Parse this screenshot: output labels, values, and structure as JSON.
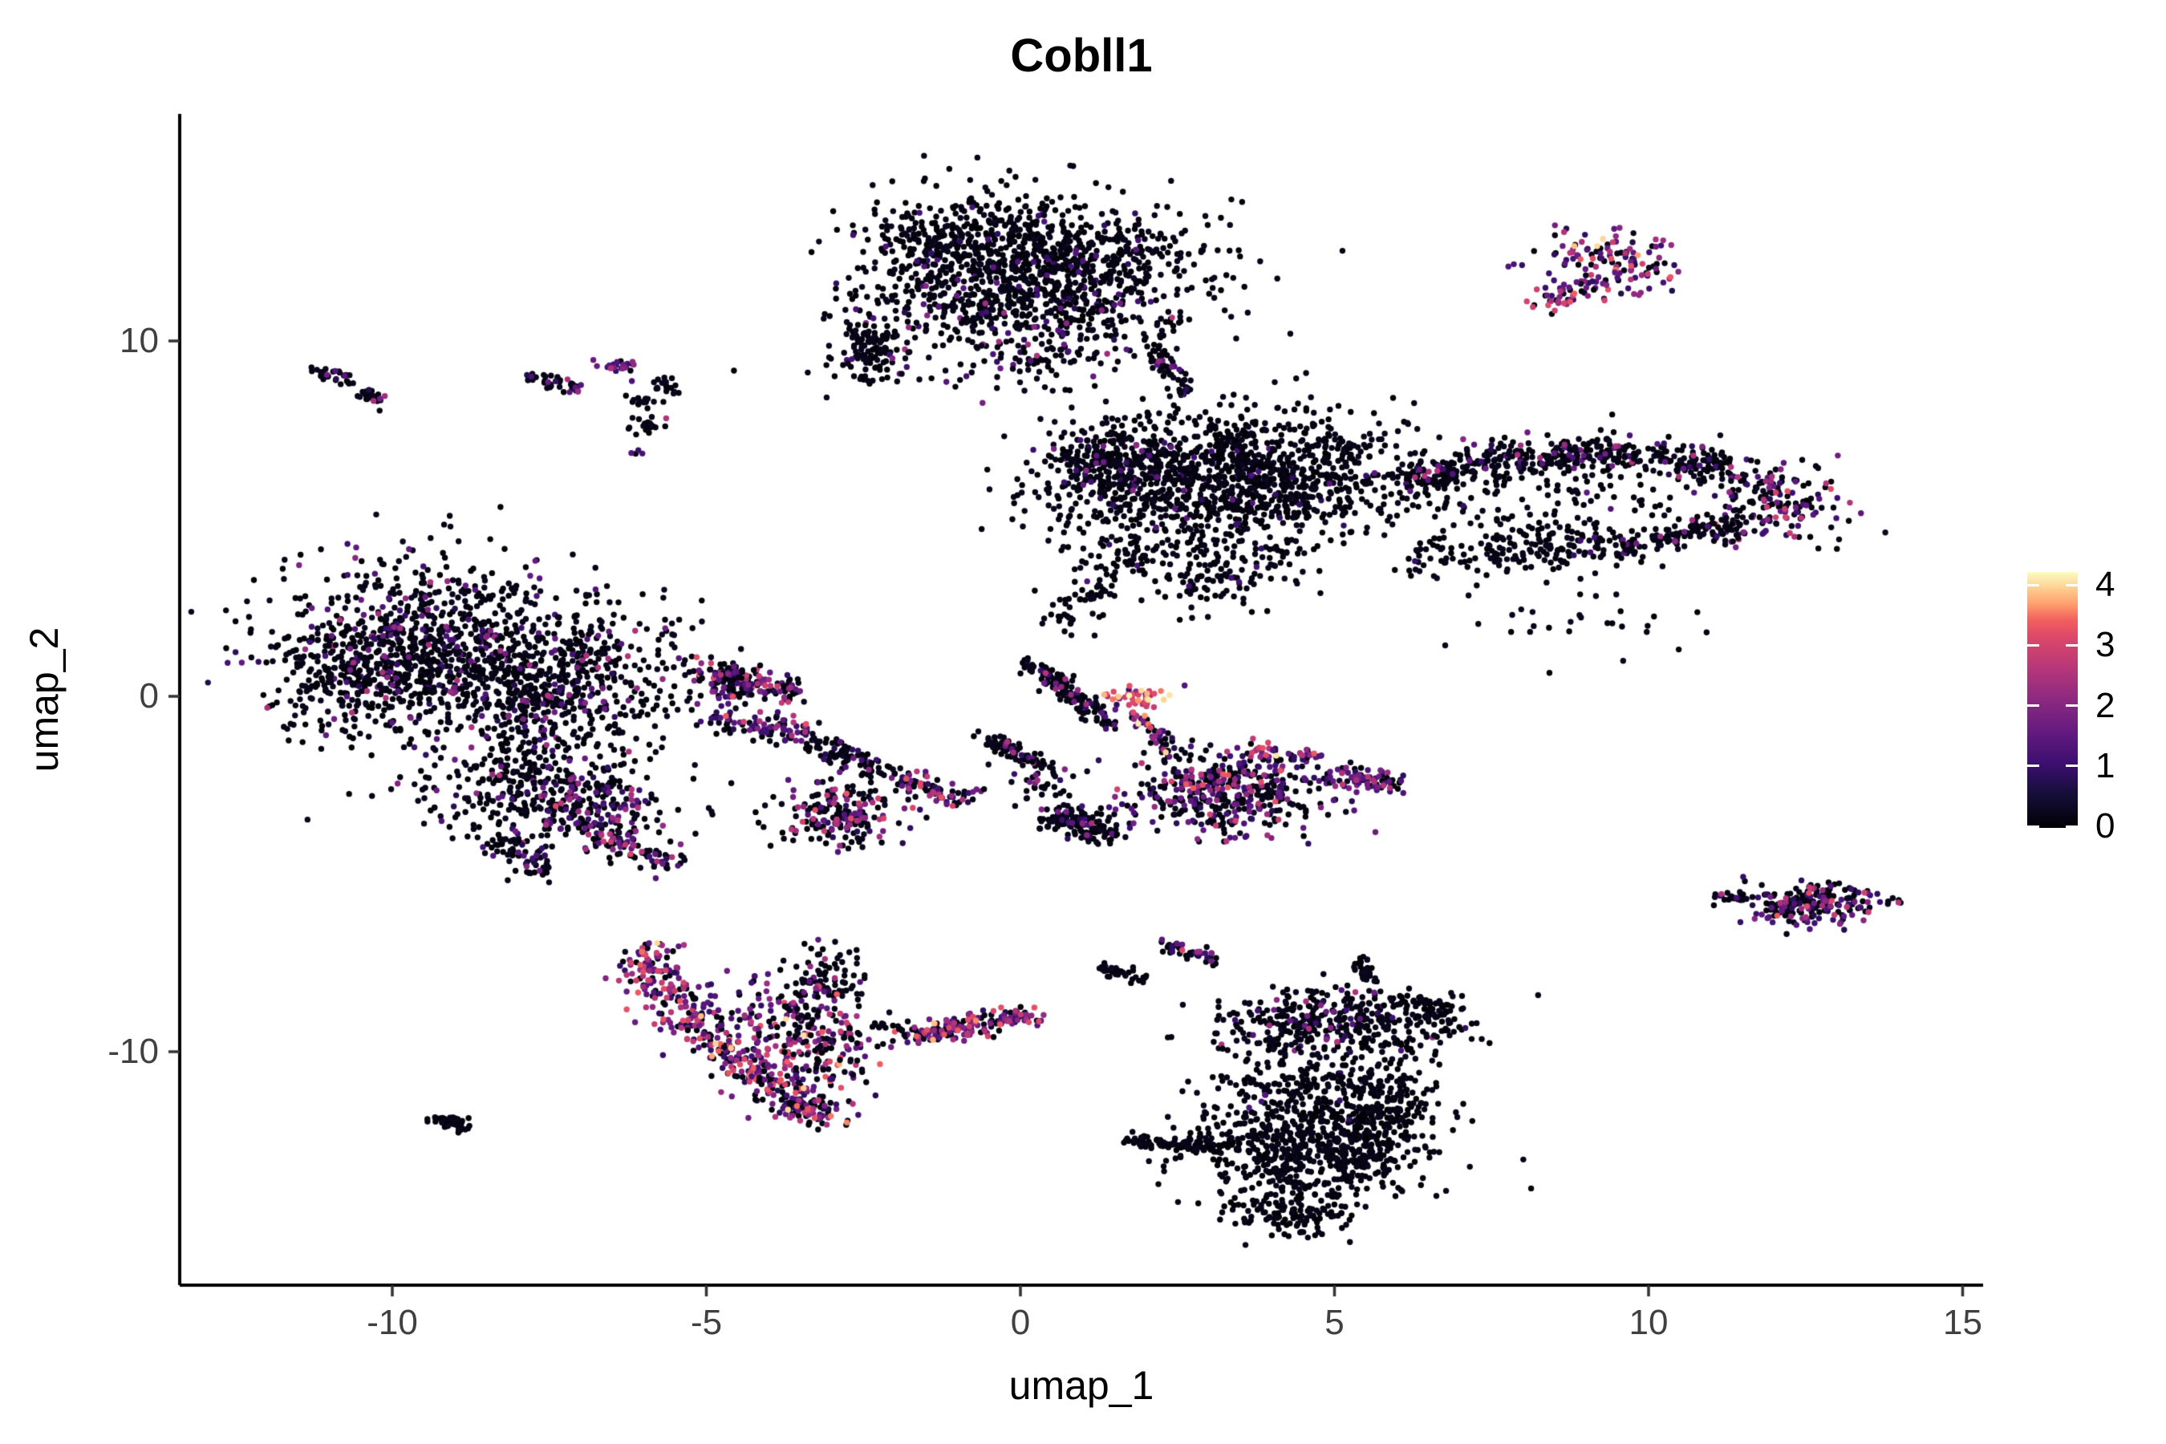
{
  "title": "Cobll1",
  "axes": {
    "x_label": "umap_1",
    "y_label": "umap_2",
    "x_ticks": [
      -10,
      -5,
      0,
      5,
      10,
      15
    ],
    "y_ticks": [
      -10,
      0,
      10
    ]
  },
  "legend": {
    "ticks": [
      0,
      1,
      2,
      3,
      4
    ],
    "vmin": 0,
    "vmax": 4.24
  },
  "palette": {
    "name": "magma",
    "stops": [
      [
        0.0,
        "#000004"
      ],
      [
        0.125,
        "#140e36"
      ],
      [
        0.25,
        "#3b0f70"
      ],
      [
        0.375,
        "#641a80"
      ],
      [
        0.5,
        "#8c2981"
      ],
      [
        0.625,
        "#b73779"
      ],
      [
        0.75,
        "#de4968"
      ],
      [
        0.8125,
        "#f1605d"
      ],
      [
        0.875,
        "#fe9f6d"
      ],
      [
        0.9375,
        "#fecf92"
      ],
      [
        1.0,
        "#fcfdbf"
      ]
    ]
  },
  "chart_data": {
    "type": "scatter",
    "title": "Cobll1",
    "xlabel": "umap_1",
    "ylabel": "umap_2",
    "xlim": [
      -13.4,
      15.3
    ],
    "ylim": [
      -16.5,
      16.4
    ],
    "grid": false,
    "legend_position": "right",
    "colorbar": {
      "label": "",
      "ticks": [
        0,
        1,
        2,
        3,
        4
      ],
      "vmin": 0,
      "vmax": 4.24,
      "palette": "magma"
    },
    "seed": 1337,
    "point_radius": 3.7,
    "color_profiles": {
      "pure_black": [
        [
          0,
          0.25,
          1.0
        ]
      ],
      "black": [
        [
          0,
          0.28,
          0.96
        ],
        [
          0.8,
          1.5,
          0.04
        ]
      ],
      "black_p": [
        [
          0,
          0.3,
          0.86
        ],
        [
          0.7,
          1.8,
          0.11
        ],
        [
          1.9,
          2.6,
          0.03
        ]
      ],
      "mixed_dark": [
        [
          0,
          0.3,
          0.58
        ],
        [
          0.7,
          1.8,
          0.28
        ],
        [
          1.9,
          2.7,
          0.1
        ],
        [
          2.8,
          3.4,
          0.04
        ]
      ],
      "purple": [
        [
          0,
          0.3,
          0.3
        ],
        [
          0.8,
          1.9,
          0.55
        ],
        [
          2.0,
          2.8,
          0.15
        ]
      ],
      "colorful": [
        [
          0,
          0.3,
          0.3
        ],
        [
          0.7,
          1.8,
          0.32
        ],
        [
          1.9,
          2.7,
          0.23
        ],
        [
          2.8,
          3.4,
          0.11
        ],
        [
          3.5,
          4.2,
          0.04
        ]
      ],
      "hot": [
        [
          0.8,
          1.6,
          0.15
        ],
        [
          1.9,
          2.7,
          0.3
        ],
        [
          2.8,
          3.4,
          0.32
        ],
        [
          3.5,
          4.2,
          0.23
        ]
      ]
    },
    "clusters": [
      {
        "shape": "gauss",
        "center": [
          -0.9,
          12.6
        ],
        "sd": [
          0.95,
          0.8
        ],
        "n": 480,
        "expr": "black"
      },
      {
        "shape": "gauss",
        "center": [
          0.9,
          12.25
        ],
        "sd": [
          1.1,
          0.85
        ],
        "n": 500,
        "expr": "black"
      },
      {
        "shape": "gauss",
        "center": [
          0.1,
          10.7
        ],
        "sd": [
          1.3,
          0.75
        ],
        "n": 380,
        "expr": "black_p"
      },
      {
        "shape": "gauss",
        "center": [
          -2.37,
          9.85
        ],
        "sd": [
          0.25,
          0.55
        ],
        "n": 110,
        "expr": "black"
      },
      {
        "shape": "strand",
        "from": [
          2.05,
          10.0
        ],
        "to": [
          2.75,
          8.3
        ],
        "w": 0.12,
        "n": 55,
        "expr": "black_p"
      },
      {
        "shape": "gauss",
        "center": [
          -0.3,
          9.6
        ],
        "sd": [
          1.3,
          0.5
        ],
        "n": 80,
        "expr": "black_p"
      },
      {
        "shape": "strand",
        "from": [
          2.9,
          8.0
        ],
        "to": [
          3.6,
          6.85
        ],
        "w": 0.15,
        "n": 28,
        "expr": "black"
      },
      {
        "shape": "strand",
        "from": [
          -11.25,
          9.15
        ],
        "to": [
          -10.65,
          8.9
        ],
        "w": 0.1,
        "n": 30,
        "expr": "black_p"
      },
      {
        "shape": "strand",
        "from": [
          -10.5,
          8.5
        ],
        "to": [
          -10.15,
          8.25
        ],
        "w": 0.1,
        "n": 22,
        "expr": "black_p"
      },
      {
        "shape": "strand",
        "from": [
          -7.85,
          9.0
        ],
        "to": [
          -7.0,
          8.65
        ],
        "w": 0.09,
        "n": 40,
        "expr": "black_p"
      },
      {
        "shape": "gauss",
        "center": [
          -6.35,
          9.3
        ],
        "sd": [
          0.18,
          0.14
        ],
        "n": 22,
        "expr": "purple"
      },
      {
        "shape": "gauss",
        "center": [
          -5.62,
          8.7
        ],
        "sd": [
          0.14,
          0.13
        ],
        "n": 18,
        "expr": "black"
      },
      {
        "shape": "gauss",
        "center": [
          -6.05,
          8.25
        ],
        "sd": [
          0.13,
          0.11
        ],
        "n": 15,
        "expr": "black_p"
      },
      {
        "shape": "gauss",
        "center": [
          -5.95,
          7.6
        ],
        "sd": [
          0.14,
          0.13
        ],
        "n": 20,
        "expr": "black_p"
      },
      {
        "shape": "gauss",
        "center": [
          -6.15,
          6.85
        ],
        "sd": [
          0.06,
          0.06
        ],
        "n": 4,
        "expr": "purple"
      },
      {
        "shape": "gauss",
        "center": [
          9.35,
          12.3
        ],
        "sd": [
          0.55,
          0.42
        ],
        "n": 120,
        "expr": "colorful"
      },
      {
        "shape": "gauss",
        "center": [
          8.55,
          11.2
        ],
        "sd": [
          0.22,
          0.22
        ],
        "n": 32,
        "expr": "colorful"
      },
      {
        "shape": "gauss",
        "center": [
          9.2,
          11.55
        ],
        "sd": [
          0.3,
          0.2
        ],
        "n": 20,
        "expr": "colorful"
      },
      {
        "shape": "gauss",
        "center": [
          2.9,
          5.9
        ],
        "sd": [
          1.35,
          1.05
        ],
        "n": 850,
        "expr": "black"
      },
      {
        "shape": "gauss",
        "center": [
          1.4,
          6.5
        ],
        "sd": [
          0.5,
          0.55
        ],
        "n": 220,
        "expr": "black_p"
      },
      {
        "shape": "gauss",
        "center": [
          4.3,
          6.3
        ],
        "sd": [
          0.9,
          0.8
        ],
        "n": 350,
        "expr": "black"
      },
      {
        "shape": "strand",
        "from": [
          0.55,
          2.0
        ],
        "to": [
          1.9,
          4.2
        ],
        "w": 0.25,
        "n": 90,
        "expr": "black"
      },
      {
        "shape": "strand",
        "from": [
          6.0,
          6.1
        ],
        "to": [
          9.0,
          6.9
        ],
        "w": 0.28,
        "n": 260,
        "expr": "black_p"
      },
      {
        "shape": "strand",
        "from": [
          9.0,
          6.9
        ],
        "to": [
          11.3,
          6.5
        ],
        "w": 0.25,
        "n": 200,
        "expr": "black_p"
      },
      {
        "shape": "gauss",
        "center": [
          11.9,
          5.4
        ],
        "sd": [
          0.5,
          0.55
        ],
        "n": 170,
        "expr": "mixed_dark"
      },
      {
        "shape": "strand",
        "from": [
          6.1,
          3.9
        ],
        "to": [
          9.6,
          4.3
        ],
        "w": 0.3,
        "n": 180,
        "expr": "black"
      },
      {
        "shape": "strand",
        "from": [
          9.6,
          4.3
        ],
        "to": [
          11.5,
          4.9
        ],
        "w": 0.22,
        "n": 120,
        "expr": "black_p"
      },
      {
        "shape": "gauss",
        "center": [
          8.3,
          5.5
        ],
        "sd": [
          1.4,
          0.7
        ],
        "n": 140,
        "expr": "black"
      },
      {
        "shape": "gauss",
        "center": [
          9.0,
          2.2
        ],
        "sd": [
          1.2,
          0.55
        ],
        "n": 30,
        "expr": "black"
      },
      {
        "shape": "gauss",
        "center": [
          3.2,
          3.4
        ],
        "sd": [
          0.8,
          0.6
        ],
        "n": 120,
        "expr": "black"
      },
      {
        "shape": "gauss",
        "center": [
          -9.4,
          1.6
        ],
        "sd": [
          1.25,
          1.15
        ],
        "n": 750,
        "expr": "black_p"
      },
      {
        "shape": "gauss",
        "center": [
          -7.4,
          0.4
        ],
        "sd": [
          1.15,
          1.0
        ],
        "n": 600,
        "expr": "black_p"
      },
      {
        "shape": "gauss",
        "center": [
          -10.6,
          0.3
        ],
        "sd": [
          0.65,
          0.85
        ],
        "n": 240,
        "expr": "black_p"
      },
      {
        "shape": "gauss",
        "center": [
          -7.7,
          -2.4
        ],
        "sd": [
          1.0,
          0.85
        ],
        "n": 330,
        "expr": "black_p"
      },
      {
        "shape": "gauss",
        "center": [
          -6.9,
          -3.2
        ],
        "sd": [
          0.7,
          0.5
        ],
        "n": 150,
        "expr": "mixed_dark"
      },
      {
        "shape": "strand",
        "from": [
          -5.1,
          0.7
        ],
        "to": [
          -3.5,
          0.1
        ],
        "w": 0.18,
        "n": 110,
        "expr": "mixed_dark"
      },
      {
        "shape": "strand",
        "from": [
          -4.9,
          -0.5
        ],
        "to": [
          -3.3,
          -1.2
        ],
        "w": 0.2,
        "n": 100,
        "expr": "mixed_dark"
      },
      {
        "shape": "strand",
        "from": [
          -6.7,
          -3.9
        ],
        "to": [
          -5.5,
          -4.8
        ],
        "w": 0.2,
        "n": 85,
        "expr": "mixed_dark"
      },
      {
        "shape": "strand",
        "from": [
          -8.4,
          -4.1
        ],
        "to": [
          -7.5,
          -5.0
        ],
        "w": 0.18,
        "n": 65,
        "expr": "black_p"
      },
      {
        "shape": "gauss",
        "center": [
          -4.6,
          0.4
        ],
        "sd": [
          0.25,
          0.3
        ],
        "n": 70,
        "expr": "mixed_dark"
      },
      {
        "shape": "strand",
        "from": [
          0.1,
          1.0
        ],
        "to": [
          1.5,
          -0.85
        ],
        "w": 0.13,
        "n": 130,
        "expr": "black_p"
      },
      {
        "shape": "gauss",
        "center": [
          1.85,
          -0.05
        ],
        "sd": [
          0.3,
          0.18
        ],
        "n": 45,
        "expr": "hot"
      },
      {
        "shape": "strand",
        "from": [
          1.75,
          -0.5
        ],
        "to": [
          2.15,
          -1.0
        ],
        "w": 0.1,
        "n": 22,
        "expr": "colorful"
      },
      {
        "shape": "strand",
        "from": [
          -0.6,
          -1.1
        ],
        "to": [
          0.35,
          -1.95
        ],
        "w": 0.12,
        "n": 70,
        "expr": "black_p"
      },
      {
        "shape": "strand",
        "from": [
          -3.3,
          -1.3
        ],
        "to": [
          -2.2,
          -2.1
        ],
        "w": 0.15,
        "n": 80,
        "expr": "black_p"
      },
      {
        "shape": "strand",
        "from": [
          -2.0,
          -2.3
        ],
        "to": [
          -0.85,
          -2.95
        ],
        "w": 0.15,
        "n": 80,
        "expr": "mixed_dark"
      },
      {
        "shape": "gauss",
        "center": [
          -2.9,
          -3.3
        ],
        "sd": [
          0.55,
          0.45
        ],
        "n": 200,
        "expr": "mixed_dark"
      },
      {
        "shape": "strand",
        "from": [
          0.45,
          -3.3
        ],
        "to": [
          1.5,
          -3.95
        ],
        "w": 0.2,
        "n": 140,
        "expr": "black_p"
      },
      {
        "shape": "gauss",
        "center": [
          3.3,
          -2.7
        ],
        "sd": [
          0.85,
          0.55
        ],
        "n": 430,
        "expr": "mixed_dark"
      },
      {
        "shape": "strand",
        "from": [
          4.8,
          -2.2
        ],
        "to": [
          6.1,
          -2.45
        ],
        "w": 0.15,
        "n": 80,
        "expr": "purple"
      },
      {
        "shape": "strand",
        "from": [
          3.6,
          -1.55
        ],
        "to": [
          4.7,
          -1.75
        ],
        "w": 0.12,
        "n": 40,
        "expr": "colorful"
      },
      {
        "shape": "strand",
        "from": [
          2.15,
          -0.9
        ],
        "to": [
          2.45,
          -1.7
        ],
        "w": 0.1,
        "n": 30,
        "expr": "colorful"
      },
      {
        "shape": "gauss",
        "center": [
          0.3,
          -2.4
        ],
        "sd": [
          0.4,
          0.3
        ],
        "n": 40,
        "expr": "black_p"
      },
      {
        "shape": "gauss",
        "center": [
          -3.05,
          -8.0
        ],
        "sd": [
          0.3,
          0.5
        ],
        "n": 80,
        "expr": "black_p"
      },
      {
        "shape": "path",
        "points": [
          [
            -5.9,
            -7.0
          ],
          [
            -5.75,
            -8.2
          ],
          [
            -5.0,
            -9.6
          ],
          [
            -3.9,
            -10.9
          ],
          [
            -3.3,
            -11.5
          ]
        ],
        "w": 0.28,
        "n": 330,
        "expr": "colorful"
      },
      {
        "shape": "gauss",
        "center": [
          -3.3,
          -9.7
        ],
        "sd": [
          0.45,
          0.8
        ],
        "n": 150,
        "expr": "colorful"
      },
      {
        "shape": "gauss",
        "center": [
          -3.35,
          -9.55
        ],
        "sd": [
          0.5,
          0.85
        ],
        "n": 100,
        "expr": "black_p"
      },
      {
        "shape": "gauss",
        "center": [
          -4.6,
          -8.9
        ],
        "sd": [
          0.55,
          0.65
        ],
        "n": 60,
        "expr": "purple"
      },
      {
        "shape": "gauss",
        "center": [
          -3.4,
          -11.7
        ],
        "sd": [
          0.3,
          0.22
        ],
        "n": 70,
        "expr": "colorful"
      },
      {
        "shape": "strand",
        "from": [
          -9.35,
          -11.85
        ],
        "to": [
          -8.8,
          -12.15
        ],
        "w": 0.09,
        "n": 55,
        "expr": "pure_black"
      },
      {
        "shape": "strand",
        "from": [
          -1.75,
          -9.55
        ],
        "to": [
          0.25,
          -8.95
        ],
        "w": 0.16,
        "n": 170,
        "expr": "colorful"
      },
      {
        "shape": "strand",
        "from": [
          -2.35,
          -9.2
        ],
        "to": [
          -1.85,
          -9.4
        ],
        "w": 0.07,
        "n": 16,
        "expr": "black"
      },
      {
        "shape": "gauss",
        "center": [
          -2.15,
          -9.8
        ],
        "sd": [
          0.08,
          0.05
        ],
        "n": 2,
        "expr": "pure_black"
      },
      {
        "shape": "gauss",
        "center": [
          5.0,
          -9.2
        ],
        "sd": [
          0.95,
          0.5
        ],
        "n": 380,
        "expr": "black_p"
      },
      {
        "shape": "strand",
        "from": [
          1.7,
          -12.5
        ],
        "to": [
          3.3,
          -12.7
        ],
        "w": 0.1,
        "n": 90,
        "expr": "pure_black"
      },
      {
        "shape": "gauss",
        "center": [
          4.6,
          -12.7
        ],
        "sd": [
          0.95,
          0.7
        ],
        "n": 650,
        "expr": "pure_black"
      },
      {
        "shape": "gauss",
        "center": [
          4.3,
          -14.6
        ],
        "sd": [
          0.5,
          0.35
        ],
        "n": 120,
        "expr": "pure_black"
      },
      {
        "shape": "gauss",
        "center": [
          4.4,
          -10.9
        ],
        "sd": [
          0.9,
          0.55
        ],
        "n": 170,
        "expr": "black"
      },
      {
        "shape": "gauss",
        "center": [
          5.8,
          -11.4
        ],
        "sd": [
          0.45,
          0.5
        ],
        "n": 150,
        "expr": "pure_black"
      },
      {
        "shape": "strand",
        "from": [
          2.1,
          -6.9
        ],
        "to": [
          3.1,
          -7.4
        ],
        "w": 0.1,
        "n": 45,
        "expr": "mixed_dark"
      },
      {
        "shape": "strand",
        "from": [
          1.2,
          -7.6
        ],
        "to": [
          2.0,
          -7.95
        ],
        "w": 0.09,
        "n": 35,
        "expr": "black"
      },
      {
        "shape": "strand",
        "from": [
          5.35,
          -7.35
        ],
        "to": [
          5.6,
          -8.1
        ],
        "w": 0.08,
        "n": 30,
        "expr": "black"
      },
      {
        "shape": "gauss",
        "center": [
          6.6,
          -9.0
        ],
        "sd": [
          0.3,
          0.3
        ],
        "n": 40,
        "expr": "black"
      },
      {
        "shape": "strand",
        "from": [
          5.9,
          -8.55
        ],
        "to": [
          6.9,
          -8.75
        ],
        "w": 0.1,
        "n": 35,
        "expr": "black"
      },
      {
        "shape": "strand",
        "from": [
          11.0,
          -5.62
        ],
        "to": [
          11.6,
          -5.72
        ],
        "w": 0.07,
        "n": 22,
        "expr": "black_p"
      },
      {
        "shape": "gauss",
        "center": [
          12.65,
          -5.85
        ],
        "sd": [
          0.55,
          0.3
        ],
        "n": 200,
        "expr": "mixed_dark"
      }
    ]
  }
}
